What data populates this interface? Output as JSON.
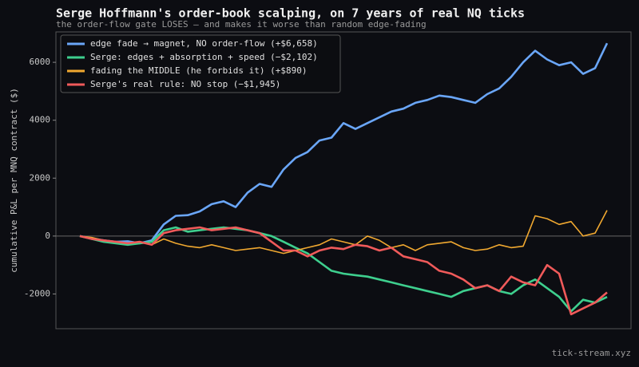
{
  "chart_data": {
    "type": "line",
    "title": "Serge Hoffmann's order-book scalping, on 7 years of real NQ ticks",
    "subtitle": "the order-flow gate LOSES — and makes it worse than random edge-fading",
    "ylabel": "cumulative P&L per MNQ contract ($)",
    "watermark": "tick-stream.xyz",
    "ylim": [
      -3200,
      7050
    ],
    "yticks": [
      -2000,
      0,
      2000,
      4000,
      6000
    ],
    "legend": "upper left",
    "series": [
      {
        "name": "edge fade → magnet, NO order-flow  (+$6,658)",
        "color": "#6aa6f8",
        "values": [
          0,
          -80,
          -150,
          -200,
          -180,
          -250,
          -150,
          400,
          700,
          720,
          850,
          1100,
          1200,
          1000,
          1500,
          1800,
          1700,
          2300,
          2700,
          2900,
          3300,
          3400,
          3900,
          3700,
          3900,
          4100,
          4300,
          4400,
          4600,
          4700,
          4850,
          4800,
          4700,
          4600,
          4900,
          5100,
          5500,
          6000,
          6400,
          6100,
          5900,
          6000,
          5600,
          5800,
          6658
        ]
      },
      {
        "name": "Serge: edges + absorption + speed  (−$2,102)",
        "color": "#3ecf8e",
        "values": [
          0,
          -100,
          -200,
          -250,
          -300,
          -250,
          -200,
          200,
          300,
          150,
          200,
          250,
          300,
          250,
          200,
          100,
          0,
          -200,
          -400,
          -600,
          -900,
          -1200,
          -1300,
          -1350,
          -1400,
          -1500,
          -1600,
          -1700,
          -1800,
          -1900,
          -2000,
          -2100,
          -1900,
          -1800,
          -1700,
          -1900,
          -2000,
          -1700,
          -1500,
          -1800,
          -2100,
          -2600,
          -2200,
          -2300,
          -2102
        ]
      },
      {
        "name": "fading the MIDDLE (he forbids it)  (+$890)",
        "color": "#f0a830",
        "values": [
          0,
          -50,
          -150,
          -200,
          -250,
          -200,
          -300,
          -100,
          -250,
          -350,
          -400,
          -300,
          -400,
          -500,
          -450,
          -400,
          -500,
          -600,
          -500,
          -400,
          -300,
          -100,
          -200,
          -300,
          0,
          -150,
          -400,
          -300,
          -500,
          -300,
          -250,
          -200,
          -400,
          -500,
          -450,
          -300,
          -400,
          -350,
          700,
          600,
          400,
          500,
          0,
          100,
          890
        ]
      },
      {
        "name": "Serge's real rule: NO stop  (−$1,945)",
        "color": "#f05a5a",
        "values": [
          0,
          -100,
          -150,
          -200,
          -250,
          -200,
          -300,
          100,
          200,
          250,
          300,
          200,
          250,
          300,
          200,
          100,
          -200,
          -500,
          -500,
          -700,
          -500,
          -400,
          -450,
          -300,
          -350,
          -500,
          -400,
          -700,
          -800,
          -900,
          -1200,
          -1300,
          -1500,
          -1800,
          -1700,
          -1900,
          -1400,
          -1600,
          -1700,
          -1000,
          -1300,
          -2700,
          -2500,
          -2300,
          -1945
        ]
      }
    ]
  }
}
